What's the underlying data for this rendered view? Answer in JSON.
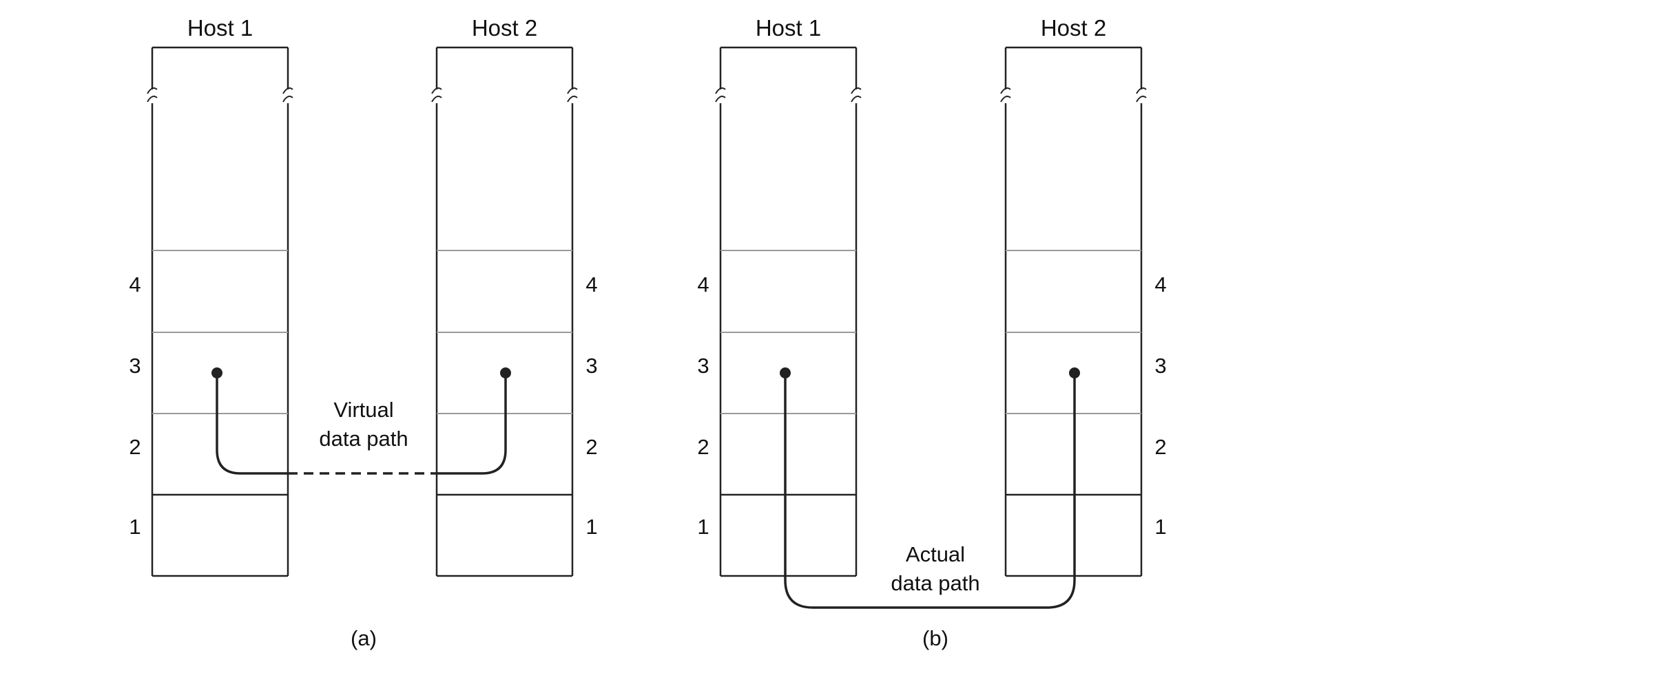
{
  "panels": [
    {
      "caption": "(a)",
      "hosts": [
        {
          "title": "Host 1",
          "layers": [
            "4",
            "3",
            "2",
            "1"
          ]
        },
        {
          "title": "Host 2",
          "layers": [
            "4",
            "3",
            "2",
            "1"
          ]
        }
      ],
      "path_label_lines": [
        "Virtual",
        "data path"
      ],
      "path_style": "dashed-between-hosts"
    },
    {
      "caption": "(b)",
      "hosts": [
        {
          "title": "Host 1",
          "layers": [
            "4",
            "3",
            "2",
            "1"
          ]
        },
        {
          "title": "Host 2",
          "layers": [
            "4",
            "3",
            "2",
            "1"
          ]
        }
      ],
      "path_label_lines": [
        "Actual",
        "data path"
      ],
      "path_style": "solid-below-hosts"
    }
  ],
  "colors": {
    "line": "#222222",
    "divider": "#9a9a9a",
    "background": "#ffffff"
  }
}
